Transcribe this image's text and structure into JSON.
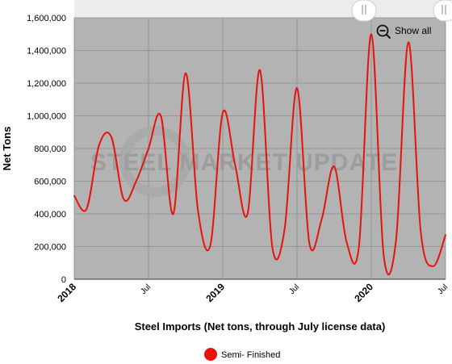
{
  "chart_data": {
    "type": "line",
    "xlabel": "Steel Imports (Net tons, through July license data)",
    "ylabel": "Net Tons",
    "ylim": [
      0,
      1600000
    ],
    "yticks": [
      0,
      200000,
      400000,
      600000,
      800000,
      1000000,
      1200000,
      1400000,
      1600000
    ],
    "ytick_labels": [
      "0",
      "200,000",
      "400,000",
      "600,000",
      "800,000",
      "1,000,000",
      "1,200,000",
      "1,400,000",
      "1,600,000"
    ],
    "xticks": [
      {
        "label": "2018",
        "major": true
      },
      {
        "label": "Jul",
        "major": false
      },
      {
        "label": "2019",
        "major": true
      },
      {
        "label": "Jul",
        "major": false
      },
      {
        "label": "2020",
        "major": true
      },
      {
        "label": "Jul",
        "major": false
      }
    ],
    "grid": true,
    "legend_position": "bottom-center",
    "zoom_button_label": "Show all",
    "watermark": "STEEL MARKET UPDATE",
    "series": [
      {
        "name": "Semi- Finished",
        "color": "#e8120c",
        "x": [
          "2018-01",
          "2018-02",
          "2018-03",
          "2018-04",
          "2018-05",
          "2018-06",
          "2018-07",
          "2018-08",
          "2018-09",
          "2018-10",
          "2018-11",
          "2018-12",
          "2019-01",
          "2019-02",
          "2019-03",
          "2019-04",
          "2019-05",
          "2019-06",
          "2019-07",
          "2019-08",
          "2019-09",
          "2019-10",
          "2019-11",
          "2019-12",
          "2020-01",
          "2020-02",
          "2020-03",
          "2020-04",
          "2020-05",
          "2020-06",
          "2020-07"
        ],
        "values": [
          510000,
          430000,
          820000,
          870000,
          490000,
          600000,
          800000,
          1000000,
          400000,
          1260000,
          420000,
          210000,
          1020000,
          700000,
          400000,
          1280000,
          200000,
          310000,
          1170000,
          220000,
          370000,
          690000,
          230000,
          200000,
          1500000,
          150000,
          240000,
          1450000,
          290000,
          80000,
          270000
        ]
      }
    ]
  }
}
